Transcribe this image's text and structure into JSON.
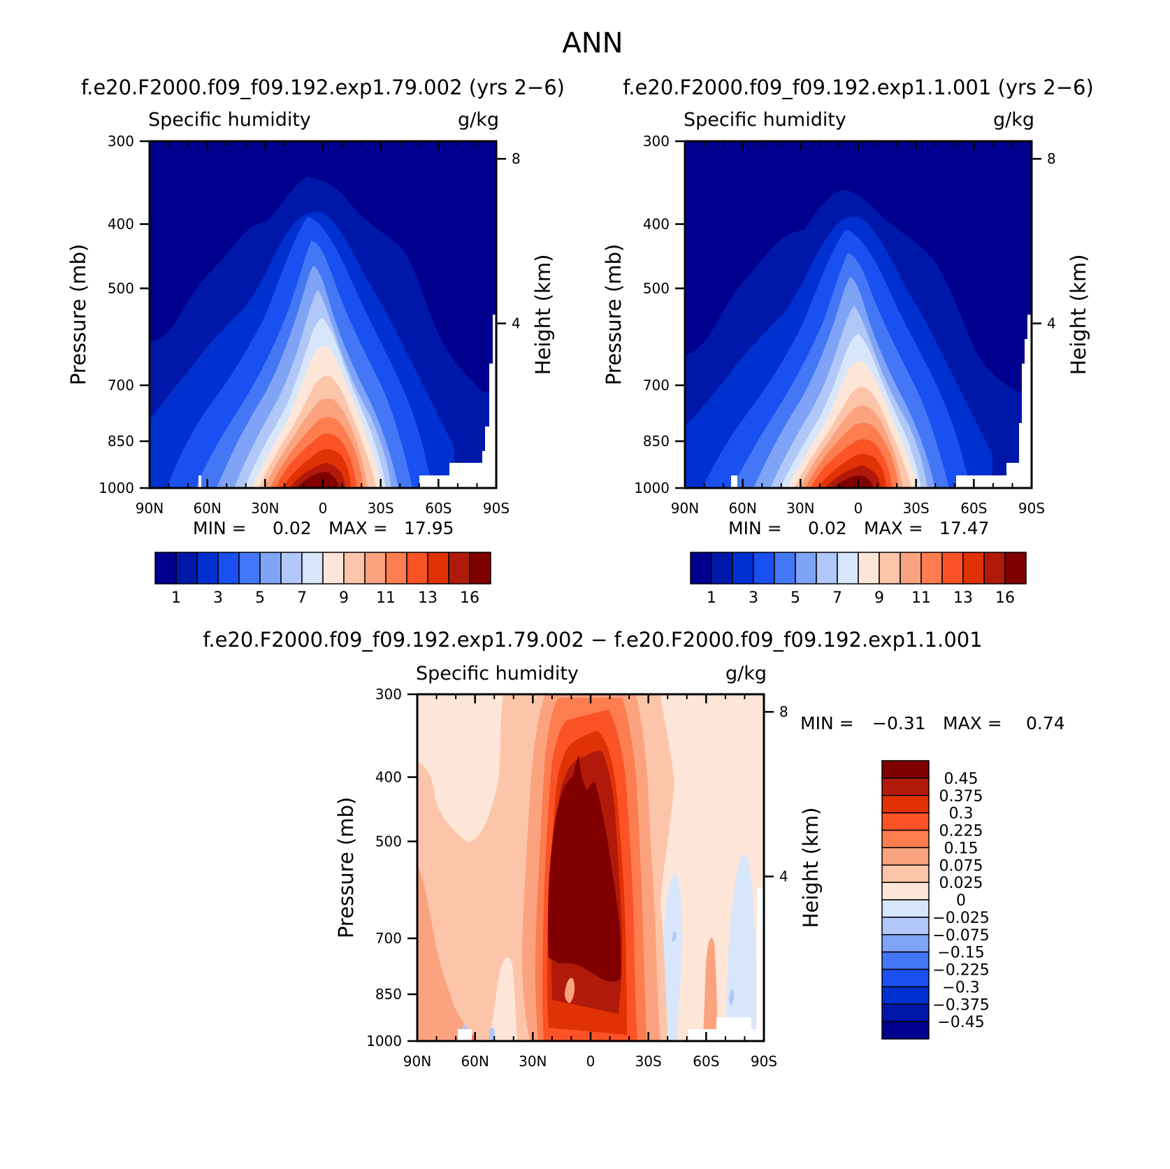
{
  "figure": {
    "title": "ANN",
    "diff_title": "f.e20.F2000.f09_f09.192.exp1.79.002 − f.e20.F2000.f09_f09.192.exp1.1.001"
  },
  "panels": [
    {
      "case_title": "f.e20.F2000.f09_f09.192.exp1.79.002 (yrs 2−6)",
      "variable": "Specific humidity",
      "units": "g/kg",
      "ylabel": "Pressure (mb)",
      "y2label": "Height (km)",
      "stats": {
        "min_label": "MIN =",
        "min": "0.02",
        "max_label": "MAX =",
        "max": "17.95"
      }
    },
    {
      "case_title": "f.e20.F2000.f09_f09.192.exp1.1.001 (yrs 2−6)",
      "variable": "Specific humidity",
      "units": "g/kg",
      "ylabel": "Pressure (mb)",
      "y2label": "Height (km)",
      "stats": {
        "min_label": "MIN =",
        "min": "0.02",
        "max_label": "MAX =",
        "max": "17.47"
      }
    },
    {
      "variable": "Specific humidity",
      "units": "g/kg",
      "ylabel": "Pressure (mb)",
      "y2label": "Height (km)",
      "stats": {
        "min_label": "MIN =",
        "min": "−0.31",
        "max_label": "MAX =",
        "max": "0.74"
      }
    }
  ],
  "chart_data": [
    {
      "type": "heatmap",
      "title": "f.e20.F2000.f09_f09.192.exp1.79.002 (yrs 2−6)",
      "subtitle": "Specific humidity",
      "units": "g/kg",
      "xlabel": "",
      "ylabel": "Pressure (mb)",
      "y2label": "Height (km)",
      "x_ticks": [
        "90N",
        "60N",
        "30N",
        "0",
        "30S",
        "60S",
        "90S"
      ],
      "y_ticks": [
        300,
        400,
        500,
        700,
        850,
        1000
      ],
      "y2_ticks": [
        8,
        4
      ],
      "ylim": [
        1000,
        300
      ],
      "contour_levels": [
        1,
        2,
        3,
        4,
        5,
        6,
        7,
        8,
        9,
        10,
        11,
        12,
        13,
        14,
        16
      ],
      "colorbar_labels": [
        "1",
        "3",
        "5",
        "7",
        "9",
        "11",
        "13",
        "16"
      ],
      "min": 0.02,
      "max": 17.95,
      "contour_top_pressure": [
        {
          "lat": 90,
          "p": [
            700,
            880,
            970,
            990,
            1000,
            1000,
            1000,
            1000,
            1000,
            1000,
            1000,
            1000,
            1000,
            1000,
            1000
          ]
        },
        {
          "lat": 60,
          "p": [
            540,
            680,
            800,
            890,
            960,
            1000,
            1000,
            1000,
            1000,
            1000,
            1000,
            1000,
            1000,
            1000,
            1000
          ]
        },
        {
          "lat": 30,
          "p": [
            445,
            560,
            640,
            720,
            790,
            850,
            900,
            950,
            990,
            1000,
            1000,
            1000,
            1000,
            1000,
            1000
          ]
        },
        {
          "lat": 15,
          "p": [
            410,
            480,
            540,
            600,
            660,
            710,
            760,
            800,
            840,
            880,
            920,
            950,
            975,
            1000,
            1000
          ]
        },
        {
          "lat": 0,
          "p": [
            370,
            440,
            490,
            540,
            590,
            630,
            680,
            730,
            770,
            800,
            830,
            860,
            890,
            930,
            970
          ]
        },
        {
          "lat": -15,
          "p": [
            400,
            470,
            530,
            590,
            640,
            690,
            740,
            780,
            820,
            860,
            900,
            940,
            970,
            995,
            1000
          ]
        },
        {
          "lat": -30,
          "p": [
            470,
            590,
            670,
            750,
            820,
            880,
            930,
            970,
            1000,
            1000,
            1000,
            1000,
            1000,
            1000,
            1000
          ]
        },
        {
          "lat": -60,
          "p": [
            660,
            820,
            920,
            980,
            1000,
            1000,
            1000,
            1000,
            1000,
            1000,
            1000,
            1000,
            1000,
            1000,
            1000
          ]
        },
        {
          "lat": -90,
          "p": [
            1000,
            1000,
            1000,
            1000,
            1000,
            1000,
            1000,
            1000,
            1000,
            1000,
            1000,
            1000,
            1000,
            1000,
            1000
          ]
        }
      ]
    },
    {
      "type": "heatmap",
      "title": "f.e20.F2000.f09_f09.192.exp1.1.001 (yrs 2−6)",
      "subtitle": "Specific humidity",
      "units": "g/kg",
      "xlabel": "",
      "ylabel": "Pressure (mb)",
      "y2label": "Height (km)",
      "x_ticks": [
        "90N",
        "60N",
        "30N",
        "0",
        "30S",
        "60S",
        "90S"
      ],
      "y_ticks": [
        300,
        400,
        500,
        700,
        850,
        1000
      ],
      "y2_ticks": [
        8,
        4
      ],
      "ylim": [
        1000,
        300
      ],
      "contour_levels": [
        1,
        2,
        3,
        4,
        5,
        6,
        7,
        8,
        9,
        10,
        11,
        12,
        13,
        14,
        16
      ],
      "colorbar_labels": [
        "1",
        "3",
        "5",
        "7",
        "9",
        "11",
        "13",
        "16"
      ],
      "min": 0.02,
      "max": 17.47,
      "contour_top_pressure": [
        {
          "lat": 90,
          "p": [
            710,
            890,
            975,
            995,
            1000,
            1000,
            1000,
            1000,
            1000,
            1000,
            1000,
            1000,
            1000,
            1000,
            1000
          ]
        },
        {
          "lat": 60,
          "p": [
            550,
            690,
            810,
            900,
            965,
            1000,
            1000,
            1000,
            1000,
            1000,
            1000,
            1000,
            1000,
            1000,
            1000
          ]
        },
        {
          "lat": 30,
          "p": [
            450,
            570,
            650,
            730,
            800,
            860,
            910,
            955,
            995,
            1000,
            1000,
            1000,
            1000,
            1000,
            1000
          ]
        },
        {
          "lat": 15,
          "p": [
            415,
            490,
            550,
            610,
            670,
            720,
            770,
            810,
            850,
            890,
            930,
            960,
            985,
            1000,
            1000
          ]
        },
        {
          "lat": 0,
          "p": [
            400,
            450,
            510,
            560,
            610,
            660,
            700,
            750,
            790,
            820,
            850,
            880,
            910,
            950,
            985
          ]
        },
        {
          "lat": -15,
          "p": [
            410,
            480,
            540,
            600,
            655,
            705,
            755,
            795,
            835,
            875,
            915,
            950,
            980,
            1000,
            1000
          ]
        },
        {
          "lat": -30,
          "p": [
            480,
            600,
            680,
            760,
            830,
            890,
            940,
            980,
            1000,
            1000,
            1000,
            1000,
            1000,
            1000,
            1000
          ]
        },
        {
          "lat": -60,
          "p": [
            670,
            830,
            930,
            985,
            1000,
            1000,
            1000,
            1000,
            1000,
            1000,
            1000,
            1000,
            1000,
            1000,
            1000
          ]
        },
        {
          "lat": -90,
          "p": [
            1000,
            1000,
            1000,
            1000,
            1000,
            1000,
            1000,
            1000,
            1000,
            1000,
            1000,
            1000,
            1000,
            1000,
            1000
          ]
        }
      ]
    },
    {
      "type": "heatmap",
      "title": "f.e20.F2000.f09_f09.192.exp1.79.002 − f.e20.F2000.f09_f09.192.exp1.1.001",
      "subtitle": "Specific humidity",
      "units": "g/kg",
      "xlabel": "",
      "ylabel": "Pressure (mb)",
      "y2label": "Height (km)",
      "x_ticks": [
        "90N",
        "60N",
        "30N",
        "0",
        "30S",
        "60S",
        "90S"
      ],
      "y_ticks": [
        300,
        400,
        500,
        700,
        850,
        1000
      ],
      "y2_ticks": [
        8,
        4
      ],
      "ylim": [
        1000,
        300
      ],
      "contour_levels": [
        -0.45,
        -0.375,
        -0.3,
        -0.225,
        -0.15,
        -0.075,
        -0.025,
        0,
        0.025,
        0.075,
        0.15,
        0.225,
        0.3,
        0.375,
        0.45
      ],
      "colorbar_labels": [
        "0.45",
        "0.375",
        "0.3",
        "0.225",
        "0.15",
        "0.075",
        "0.025",
        "0",
        "−0.025",
        "−0.075",
        "−0.15",
        "−0.225",
        "−0.3",
        "−0.375",
        "−0.45"
      ],
      "min": -0.31,
      "max": 0.74,
      "regions": [
        {
          "value_range": [
            0,
            0.025
          ],
          "lat": [
            90,
            -90
          ],
          "p": [
            300,
            1000
          ]
        },
        {
          "value_range": [
            0.025,
            0.075
          ],
          "lat": [
            45,
            -40
          ],
          "p": [
            300,
            1000
          ]
        },
        {
          "value_range": [
            0.075,
            0.15
          ],
          "lat": [
            30,
            -28
          ],
          "p": [
            300,
            1000
          ]
        },
        {
          "value_range": [
            0.45,
            0.74
          ],
          "lat": [
            15,
            -20
          ],
          "p": [
            470,
            880
          ]
        },
        {
          "value_range": [
            -0.025,
            0
          ],
          "lat": [
            -42,
            -50
          ],
          "p": [
            660,
            940
          ]
        },
        {
          "value_range": [
            -0.025,
            0
          ],
          "lat": [
            -75,
            -85
          ],
          "p": [
            620,
            960
          ]
        }
      ]
    }
  ],
  "colors": {
    "humidity_fill": [
      "#00008f",
      "#0018aa",
      "#0030d0",
      "#1a4ff2",
      "#4477f5",
      "#7fa4f7",
      "#b0c7f7",
      "#d8e6fb",
      "#fde6d8",
      "#fcc5aa",
      "#fba37f",
      "#fc7d4f",
      "#fb5326",
      "#e13205",
      "#b11a0a",
      "#800000"
    ],
    "diff_fill": [
      "#800000",
      "#b11a0a",
      "#e13205",
      "#fb5326",
      "#fc7d4f",
      "#fba37f",
      "#fcc5aa",
      "#fde6d8",
      "#d8e6fb",
      "#b0c7f7",
      "#7fa4f7",
      "#4477f5",
      "#1a4ff2",
      "#0030d0",
      "#0018aa",
      "#00008f"
    ]
  }
}
